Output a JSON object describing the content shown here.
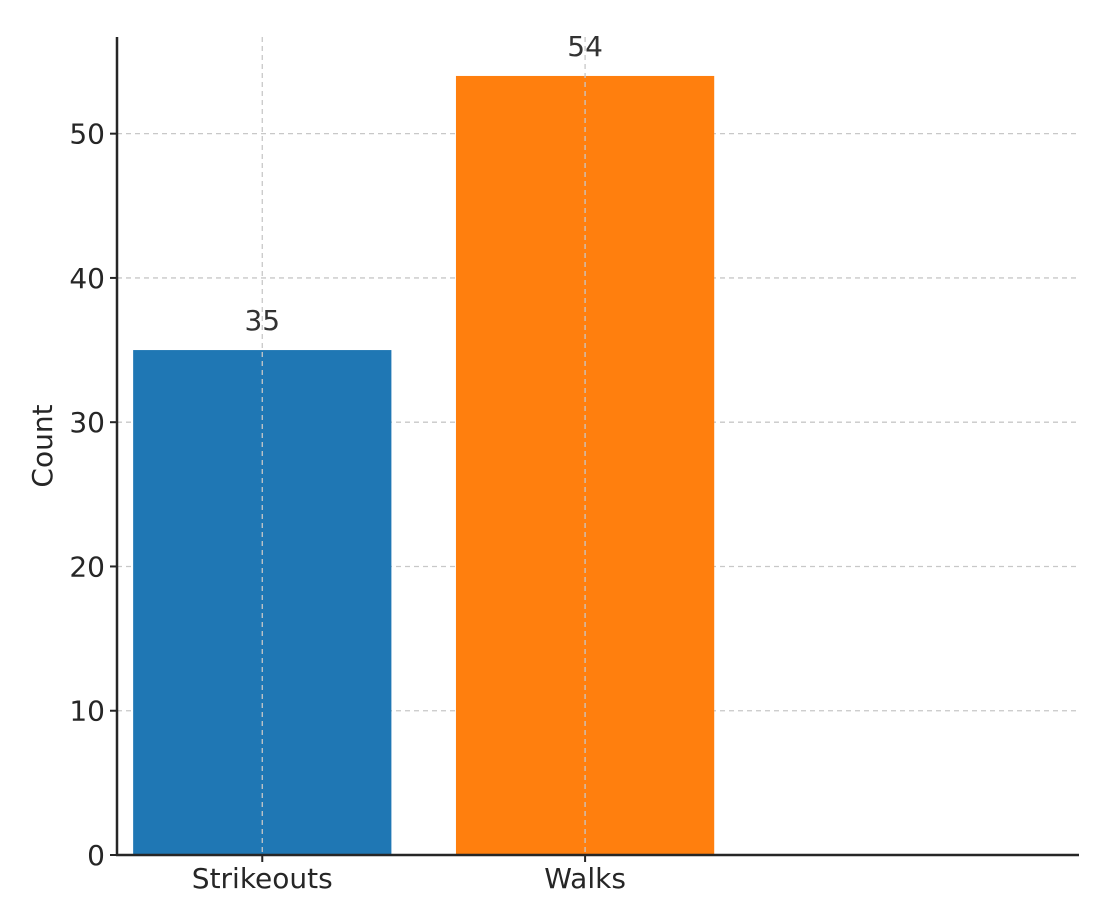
{
  "chart_data": {
    "type": "bar",
    "categories": [
      "Strikeouts",
      "Walks"
    ],
    "values": [
      35,
      54
    ],
    "colors": [
      "#1f77b4",
      "#ff7f0e"
    ],
    "title": "",
    "xlabel": "",
    "ylabel": "Count",
    "ylim": [
      0,
      56.7
    ],
    "yticks": [
      0,
      10,
      20,
      30,
      40,
      50
    ],
    "grid": true,
    "grid_style": "dashed",
    "data_labels": [
      "35",
      "54"
    ]
  }
}
